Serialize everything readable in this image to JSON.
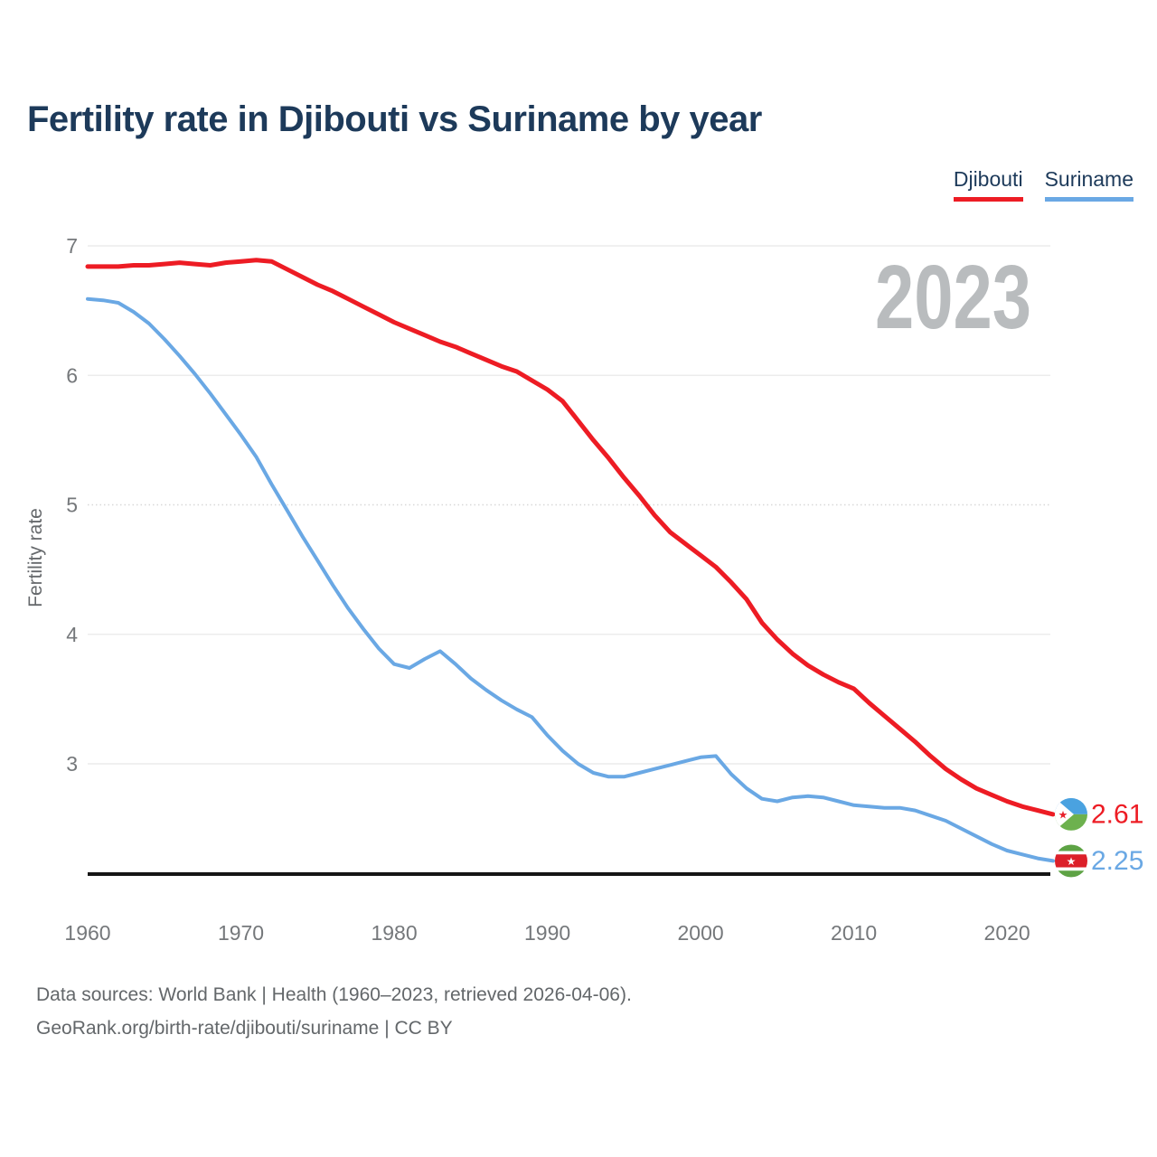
{
  "header": {
    "title": "Fertility rate in Djibouti vs Suriname by year"
  },
  "watermark": "2023",
  "axes": {
    "y_label": "Fertility rate",
    "y_ticks": [
      7,
      6,
      5,
      4,
      3
    ],
    "x_ticks": [
      1960,
      1970,
      1980,
      1990,
      2000,
      2010,
      2020
    ]
  },
  "chart_data": {
    "type": "line",
    "title": "Fertility rate in Djibouti vs Suriname by year",
    "xlabel": "",
    "ylabel": "Fertility rate",
    "xlim": [
      1960,
      2023
    ],
    "ylim": [
      2.05,
      7.1
    ],
    "grid": true,
    "legend_position": "top-right",
    "x": [
      1960,
      1961,
      1962,
      1963,
      1964,
      1965,
      1966,
      1967,
      1968,
      1969,
      1970,
      1971,
      1972,
      1973,
      1974,
      1975,
      1976,
      1977,
      1978,
      1979,
      1980,
      1981,
      1982,
      1983,
      1984,
      1985,
      1986,
      1987,
      1988,
      1989,
      1990,
      1991,
      1992,
      1993,
      1994,
      1995,
      1996,
      1997,
      1998,
      1999,
      2000,
      2001,
      2002,
      2003,
      2004,
      2005,
      2006,
      2007,
      2008,
      2009,
      2010,
      2011,
      2012,
      2013,
      2014,
      2015,
      2016,
      2017,
      2018,
      2019,
      2020,
      2021,
      2022,
      2023
    ],
    "series": [
      {
        "name": "Djibouti",
        "color": "#ed1c24",
        "end_label": "2.61",
        "flag": "djibouti",
        "values": [
          6.84,
          6.84,
          6.84,
          6.85,
          6.85,
          6.86,
          6.87,
          6.86,
          6.85,
          6.87,
          6.88,
          6.89,
          6.88,
          6.82,
          6.76,
          6.7,
          6.65,
          6.59,
          6.53,
          6.47,
          6.41,
          6.36,
          6.31,
          6.26,
          6.22,
          6.17,
          6.12,
          6.07,
          6.03,
          5.96,
          5.89,
          5.8,
          5.65,
          5.5,
          5.36,
          5.21,
          5.07,
          4.92,
          4.79,
          4.7,
          4.61,
          4.52,
          4.4,
          4.27,
          4.09,
          3.96,
          3.85,
          3.76,
          3.69,
          3.63,
          3.58,
          3.47,
          3.37,
          3.27,
          3.17,
          3.06,
          2.96,
          2.88,
          2.81,
          2.76,
          2.71,
          2.67,
          2.64,
          2.61
        ]
      },
      {
        "name": "Suriname",
        "color": "#6aa8e4",
        "end_label": "2.25",
        "flag": "suriname",
        "values": [
          6.59,
          6.58,
          6.56,
          6.49,
          6.4,
          6.28,
          6.15,
          6.01,
          5.86,
          5.7,
          5.54,
          5.37,
          5.16,
          4.96,
          4.76,
          4.57,
          4.38,
          4.2,
          4.04,
          3.89,
          3.77,
          3.74,
          3.81,
          3.87,
          3.77,
          3.66,
          3.57,
          3.49,
          3.42,
          3.36,
          3.22,
          3.1,
          3.0,
          2.93,
          2.9,
          2.9,
          2.93,
          2.96,
          2.99,
          3.02,
          3.05,
          3.06,
          2.92,
          2.81,
          2.73,
          2.71,
          2.74,
          2.75,
          2.74,
          2.71,
          2.68,
          2.67,
          2.66,
          2.66,
          2.64,
          2.6,
          2.56,
          2.5,
          2.44,
          2.38,
          2.33,
          2.3,
          2.27,
          2.25
        ]
      }
    ]
  },
  "flags": {
    "djibouti": {
      "blue": "#4aa2e0",
      "green": "#6db14e",
      "triangle": "#ffffff",
      "star": "#e8212b"
    },
    "suriname": {
      "green": "#5ea345",
      "white": "#ffffff",
      "red": "#dc2029",
      "star": "#ffffff"
    }
  },
  "footer": {
    "line1": "Data sources: World Bank | Health (1960–2023, retrieved 2026-04-06).",
    "line2": "GeoRank.org/birth-rate/djibouti/suriname | CC BY"
  }
}
